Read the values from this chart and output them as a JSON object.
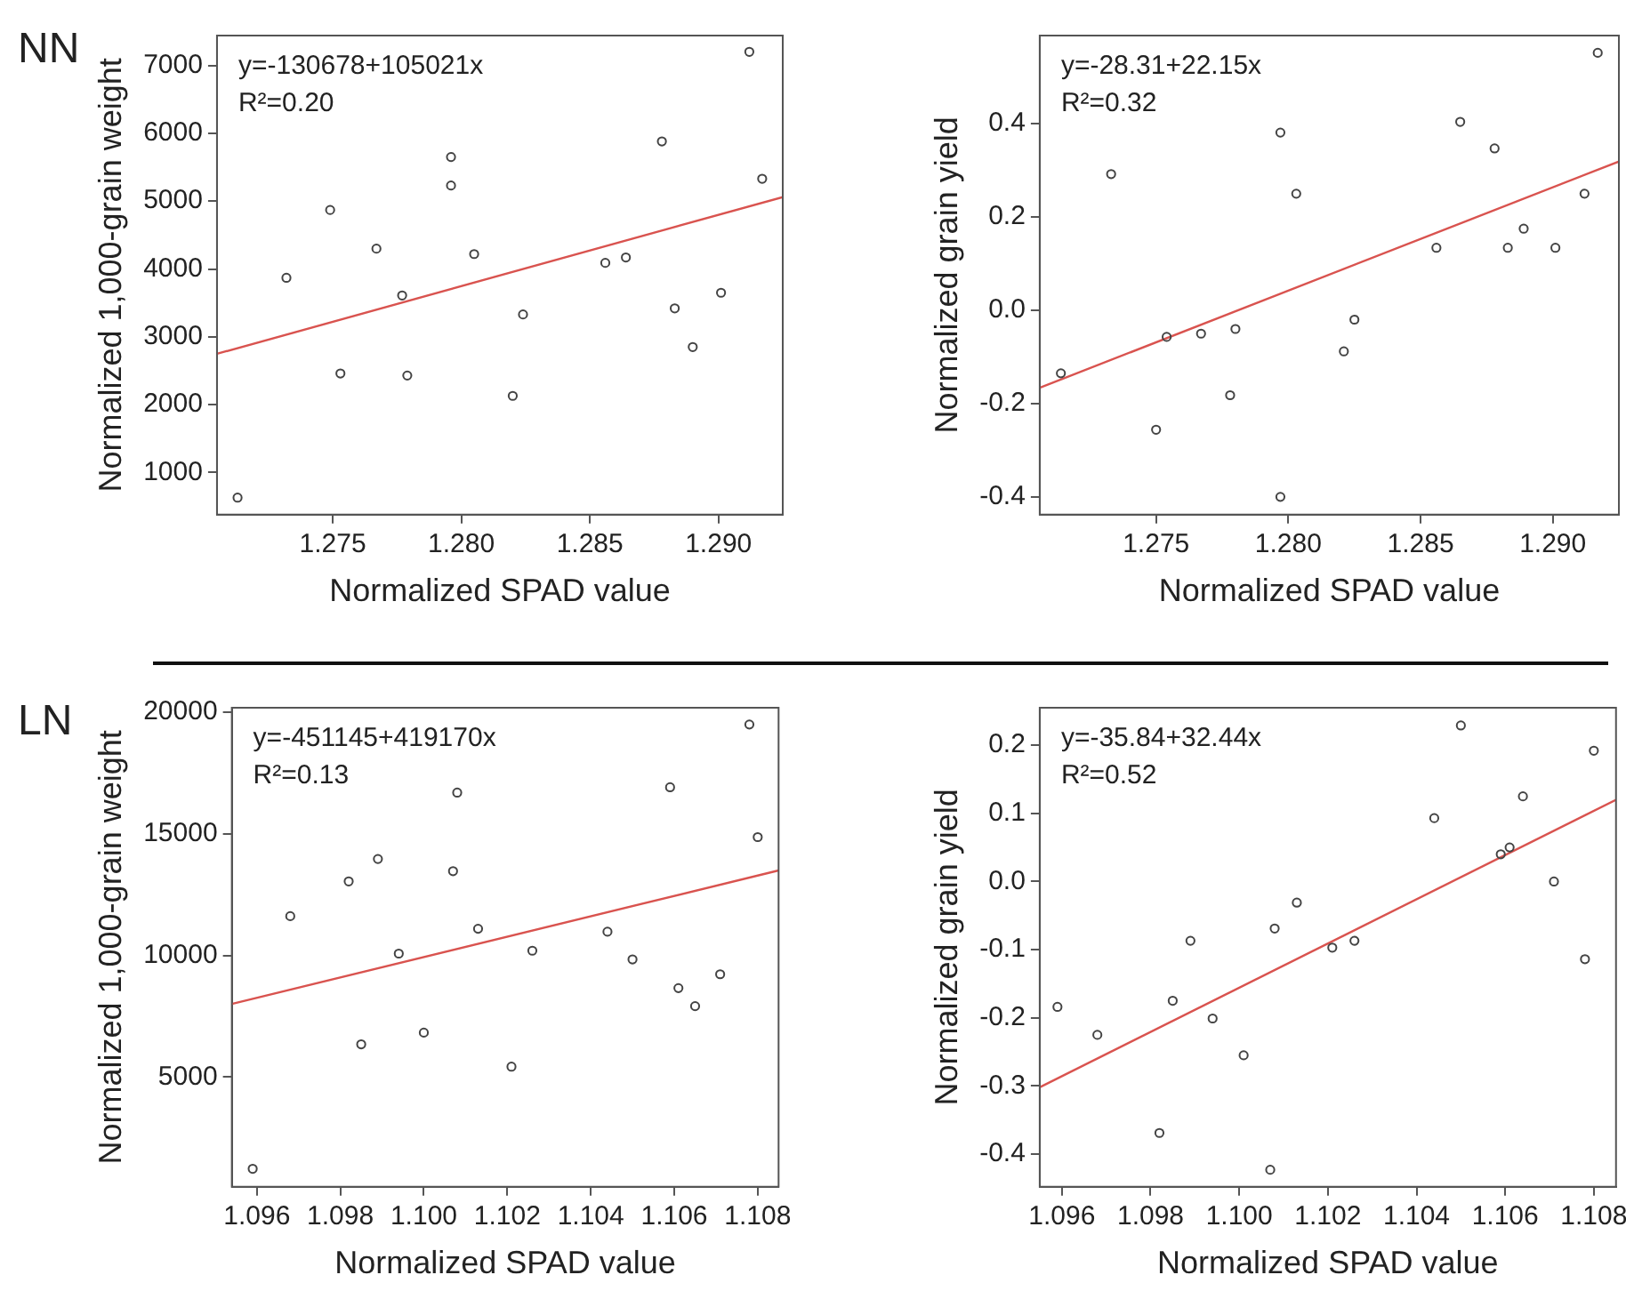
{
  "chart_data": [
    {
      "type": "scatter",
      "title": "NN",
      "xlabel": "Normalized SPAD value",
      "ylabel": "Normalized 1,000-grain weight",
      "annotations": [
        "y=-130678+105021x",
        "R²=0.20"
      ],
      "xlim": [
        1.2705,
        1.2925
      ],
      "xticks": [
        1.275,
        {
          "value": 1.28,
          "label": "1.280"
        },
        1.285,
        {
          "value": 1.29,
          "label": "1.290"
        }
      ],
      "ylim": [
        380,
        7440
      ],
      "yticks": [
        1000,
        2000,
        3000,
        4000,
        5000,
        6000,
        7000
      ],
      "series": [
        {
          "marker": "circle",
          "color": "#444444",
          "x": [
            1.2713,
            1.2732,
            1.2749,
            1.2753,
            1.2767,
            1.2777,
            1.2779,
            1.2796,
            1.2796,
            1.2805,
            1.282,
            1.2824,
            1.2856,
            1.2864,
            1.2878,
            1.2883,
            1.289,
            1.2901,
            1.2912,
            1.2917
          ],
          "values": [
            630,
            3870,
            4870,
            2460,
            4300,
            3610,
            2430,
            5650,
            5230,
            4220,
            2130,
            3330,
            4090,
            4170,
            5880,
            3420,
            2850,
            3650,
            7200,
            5330
          ]
        },
        {
          "type": "line",
          "color": "#d9534f",
          "x": [
            1.2705,
            1.2925
          ],
          "values": [
            2750,
            5060
          ]
        }
      ]
    },
    {
      "type": "scatter",
      "xlabel": "Normalized SPAD value",
      "ylabel": "Normalized grain yield",
      "annotations": [
        "y=-28.31+22.15x",
        "R²=0.32"
      ],
      "xlim": [
        1.2706,
        1.2925
      ],
      "xticks": [
        1.275,
        {
          "value": 1.28,
          "label": "1.280"
        },
        1.285,
        {
          "value": 1.29,
          "label": "1.290"
        }
      ],
      "ylim": [
        -0.438,
        0.589
      ],
      "yticks": [
        -0.4,
        -0.2,
        {
          "value": 0,
          "label": "0.0"
        },
        0.2,
        0.4
      ],
      "series": [
        {
          "marker": "circle",
          "color": "#444444",
          "x": [
            1.2714,
            1.2733,
            1.275,
            1.2754,
            1.2767,
            1.2778,
            1.278,
            1.2797,
            1.2797,
            1.2803,
            1.2821,
            1.2825,
            1.2856,
            1.2865,
            1.2878,
            1.2883,
            1.2889,
            1.2901,
            1.2912,
            1.2917
          ],
          "values": [
            -0.135,
            0.292,
            -0.256,
            -0.057,
            -0.05,
            -0.182,
            -0.04,
            0.381,
            -0.4,
            0.25,
            -0.088,
            -0.02,
            0.134,
            0.404,
            0.347,
            0.134,
            0.175,
            0.134,
            0.25,
            0.552
          ]
        },
        {
          "type": "line",
          "color": "#d9534f",
          "x": [
            1.2706,
            1.2925
          ],
          "values": [
            -0.166,
            0.319
          ]
        }
      ]
    },
    {
      "type": "scatter",
      "title": "LN",
      "xlabel": "Normalized SPAD value",
      "ylabel": "Normalized 1,000-grain weight",
      "annotations": [
        "y=-451145+419170x",
        "R²=0.13"
      ],
      "xlim": [
        1.0954,
        1.1085
      ],
      "xticks": [
        1.096,
        1.098,
        {
          "value": 1.1,
          "label": "1.100"
        },
        1.102,
        1.104,
        1.106,
        1.108
      ],
      "ylim": [
        490,
        20190
      ],
      "yticks": [
        5000,
        10000,
        15000,
        20000
      ],
      "series": [
        {
          "marker": "circle",
          "color": "#444444",
          "x": [
            1.0959,
            1.0968,
            1.0982,
            1.0985,
            1.0989,
            1.0994,
            1.1,
            1.1007,
            1.1008,
            1.1013,
            1.1021,
            1.1026,
            1.1044,
            1.105,
            1.1059,
            1.1061,
            1.1065,
            1.1071,
            1.1078,
            1.108
          ],
          "values": [
            1230,
            11620,
            13050,
            6350,
            13970,
            10080,
            6830,
            13470,
            16700,
            11100,
            5430,
            10200,
            10980,
            9840,
            16920,
            8660,
            7920,
            9230,
            19500,
            14870
          ]
        },
        {
          "type": "line",
          "color": "#d9534f",
          "x": [
            1.0954,
            1.1085
          ],
          "values": [
            8010,
            13500
          ]
        }
      ]
    },
    {
      "type": "scatter",
      "xlabel": "Normalized SPAD value",
      "ylabel": "Normalized grain yield",
      "annotations": [
        "y=-35.84+32.44x",
        "R²=0.52"
      ],
      "xlim": [
        1.0955,
        1.1085
      ],
      "xticks": [
        1.096,
        1.098,
        {
          "value": 1.1,
          "label": "1.100"
        },
        1.102,
        1.104,
        1.106,
        1.108
      ],
      "ylim": [
        -0.448,
        0.255
      ],
      "yticks": [
        -0.4,
        -0.3,
        -0.2,
        -0.1,
        {
          "value": 0,
          "label": "0.0"
        },
        0.1,
        0.2
      ],
      "series": [
        {
          "marker": "circle",
          "color": "#444444",
          "x": [
            1.0959,
            1.0968,
            1.0982,
            1.0985,
            1.0989,
            1.0994,
            1.1001,
            1.1007,
            1.1008,
            1.1013,
            1.1021,
            1.1026,
            1.1044,
            1.105,
            1.1059,
            1.1061,
            1.1064,
            1.1071,
            1.1078,
            1.108
          ],
          "values": [
            -0.184,
            -0.225,
            -0.369,
            -0.175,
            -0.087,
            -0.201,
            -0.255,
            -0.423,
            -0.069,
            -0.031,
            -0.097,
            -0.087,
            0.093,
            0.229,
            0.04,
            0.05,
            0.125,
            0,
            -0.114,
            0.192
          ]
        },
        {
          "type": "line",
          "color": "#d9534f",
          "x": [
            1.0955,
            1.1085
          ],
          "values": [
            -0.302,
            0.12
          ]
        }
      ]
    }
  ]
}
